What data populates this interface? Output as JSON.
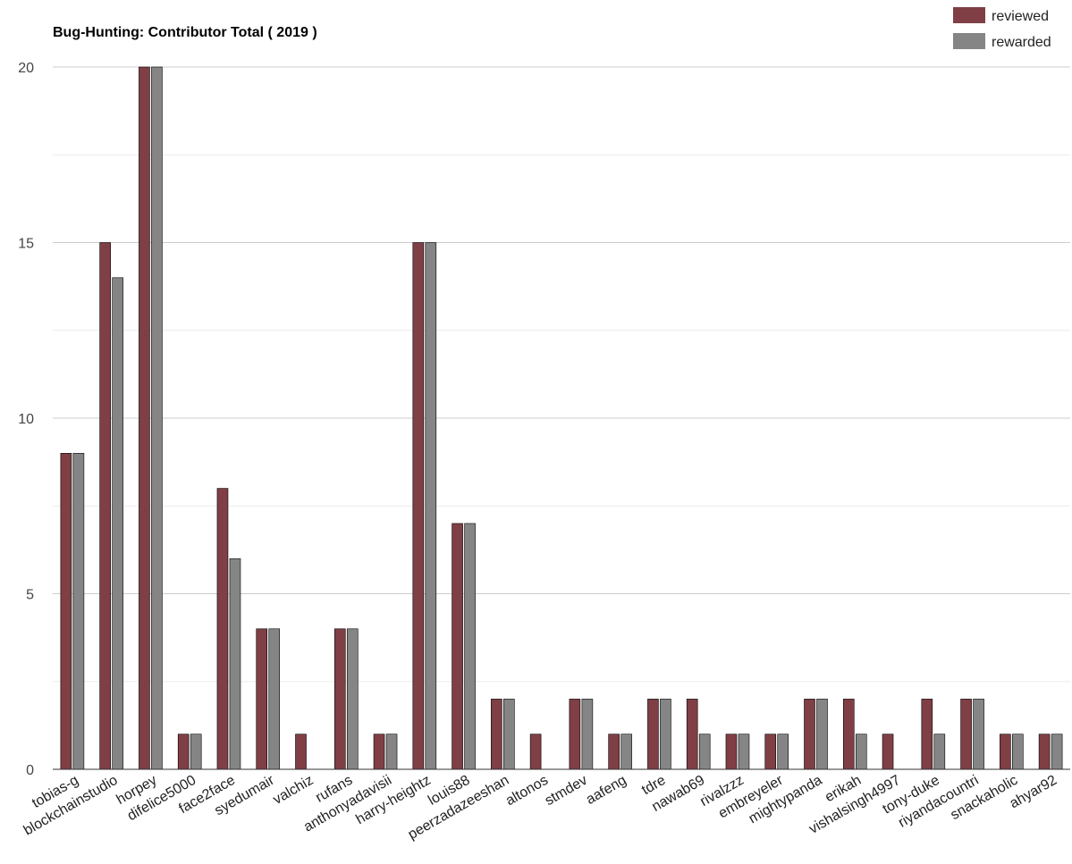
{
  "chart_data": {
    "type": "bar",
    "title": "Bug-Hunting: Contributor Total ( 2019 )",
    "xlabel": "",
    "ylabel": "",
    "ylim": [
      0,
      20
    ],
    "yticks": [
      0,
      5,
      10,
      15,
      20
    ],
    "minor_grid": true,
    "grid": true,
    "legend_position": "top-right",
    "categories": [
      "tobias-g",
      "blockchainstudio",
      "horpey",
      "difelice5000",
      "face2face",
      "syedumair",
      "valchiz",
      "rufans",
      "anthonyadavisii",
      "harry-heightz",
      "louis88",
      "peerzadazeeshan",
      "altonos",
      "stmdev",
      "aafeng",
      "tdre",
      "nawab69",
      "rivalzzz",
      "embreyeler",
      "mightypanda",
      "erikah",
      "vishalsingh4997",
      "tony-duke",
      "riyandacountri",
      "snackaholic",
      "ahyar92"
    ],
    "series": [
      {
        "name": "reviewed",
        "color": "#7f3f45",
        "values": [
          9,
          15,
          20,
          1,
          8,
          4,
          1,
          4,
          1,
          15,
          7,
          2,
          1,
          2,
          1,
          2,
          2,
          1,
          1,
          2,
          2,
          1,
          2,
          2,
          1,
          1
        ]
      },
      {
        "name": "rewarded",
        "color": "#858585",
        "values": [
          9,
          14,
          20,
          1,
          6,
          4,
          0,
          4,
          1,
          15,
          7,
          2,
          0,
          2,
          1,
          2,
          1,
          1,
          1,
          2,
          1,
          0,
          1,
          2,
          1,
          1
        ]
      }
    ]
  }
}
